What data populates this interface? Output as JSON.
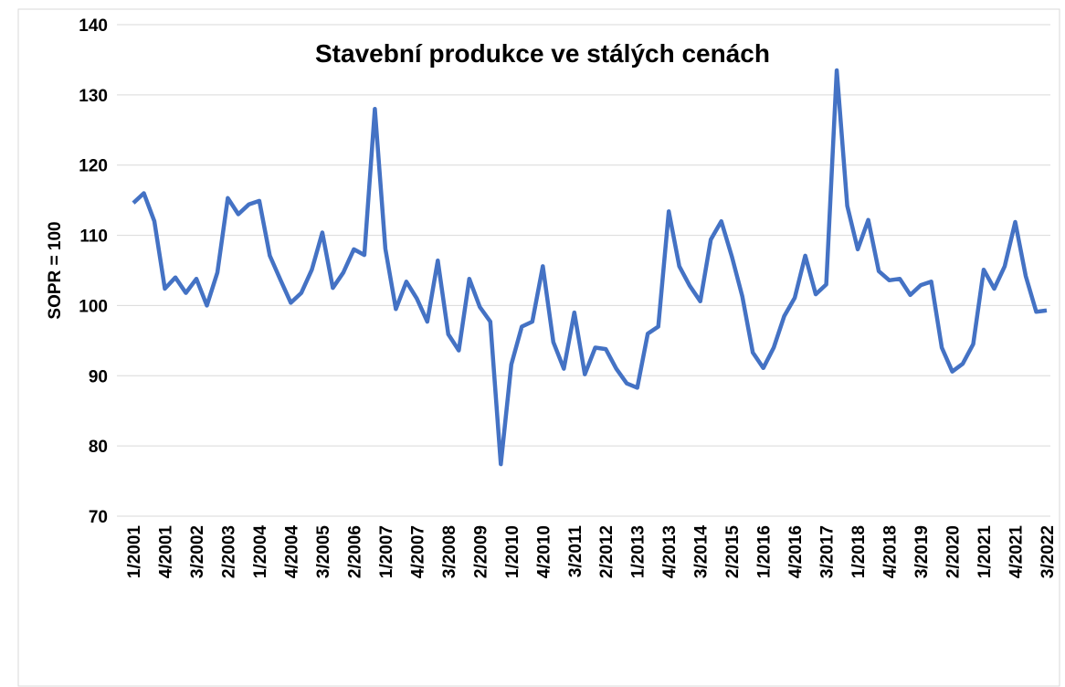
{
  "chart_data": {
    "type": "line",
    "title": "Stavební produkce ve stálých cenách",
    "y_label": "SOPR = 100",
    "categories": [
      "1/2001",
      null,
      null,
      "4/2001",
      null,
      null,
      "3/2002",
      null,
      null,
      "2/2003",
      null,
      null,
      "1/2004",
      null,
      null,
      "4/2004",
      null,
      null,
      "3/2005",
      null,
      null,
      "2/2006",
      null,
      null,
      "1/2007",
      null,
      null,
      "4/2007",
      null,
      null,
      "3/2008",
      null,
      null,
      "2/2009",
      null,
      null,
      "1/2010",
      null,
      null,
      "4/2010",
      null,
      null,
      "3/2011",
      null,
      null,
      "2/2012",
      null,
      null,
      "1/2013",
      null,
      null,
      "4/2013",
      null,
      null,
      "3/2014",
      null,
      null,
      "2/2015",
      null,
      null,
      "1/2016",
      null,
      null,
      "4/2016",
      null,
      null,
      "3/2017",
      null,
      null,
      "1/2018",
      null,
      null,
      "4/2018",
      null,
      null,
      "3/2019",
      null,
      null,
      "2/2020",
      null,
      null,
      "1/2021",
      null,
      null,
      "4/2021",
      null,
      null,
      "3/2022"
    ],
    "series": [
      {
        "name": "Stavební produkce",
        "color": "#4472c4",
        "values": [
          114.6,
          116,
          112,
          102.4,
          104,
          101.8,
          103.8,
          100,
          104.7,
          115.3,
          113,
          114.4,
          114.9,
          107.1,
          103.7,
          100.4,
          101.8,
          105.1,
          110.4,
          102.5,
          104.7,
          108,
          107.2,
          128,
          108.1,
          99.5,
          103.4,
          101,
          97.7,
          106.4,
          95.9,
          93.6,
          103.8,
          99.8,
          97.7,
          77.4,
          91.6,
          97,
          97.7,
          105.6,
          94.8,
          91,
          99,
          90.2,
          94,
          93.8,
          91,
          88.9,
          88.3,
          96,
          97,
          113.4,
          105.6,
          102.8,
          100.6,
          109.4,
          112,
          107,
          101.3,
          93.3,
          91.1,
          94,
          98.5,
          101.1,
          107.1,
          101.6,
          103,
          133.5,
          114.2,
          108,
          112.2,
          104.9,
          103.6,
          103.8,
          101.5,
          102.9,
          103.4,
          94,
          90.6,
          91.7,
          94.5,
          105.1,
          102.4,
          105.6,
          111.9,
          104.2,
          99.1,
          99.3
        ]
      }
    ],
    "ylim": [
      70,
      140
    ],
    "yticks": [
      70,
      80,
      90,
      100,
      110,
      120,
      130,
      140
    ],
    "grid": true
  }
}
